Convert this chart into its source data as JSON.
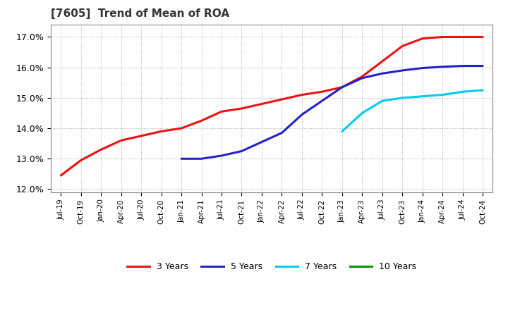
{
  "title": "[7605]  Trend of Mean of ROA",
  "title_fontsize": 11,
  "background_color": "#ffffff",
  "grid_color": "#aaaaaa",
  "ylim": [
    0.119,
    0.174
  ],
  "yticks": [
    0.12,
    0.13,
    0.14,
    0.15,
    0.16,
    0.17
  ],
  "ytick_labels": [
    "12.0%",
    "13.0%",
    "14.0%",
    "15.0%",
    "16.0%",
    "17.0%"
  ],
  "xtick_labels": [
    "Jul-19",
    "Oct-19",
    "Jan-20",
    "Apr-20",
    "Jul-20",
    "Oct-20",
    "Jan-21",
    "Apr-21",
    "Jul-21",
    "Oct-21",
    "Jan-22",
    "Apr-22",
    "Jul-22",
    "Oct-22",
    "Jan-23",
    "Apr-23",
    "Jul-23",
    "Oct-23",
    "Jan-24",
    "Apr-24",
    "Jul-24",
    "Oct-24"
  ],
  "legend_entries": [
    "3 Years",
    "5 Years",
    "7 Years",
    "10 Years"
  ],
  "legend_colors": [
    "#ee1111",
    "#2222cc",
    "#00ccee",
    "#009900"
  ],
  "series": {
    "3years": {
      "color": "#ee1111",
      "x_indices": [
        0,
        1,
        2,
        3,
        4,
        5,
        6,
        7,
        8,
        9,
        10,
        11,
        12,
        13,
        14,
        15,
        16,
        17,
        18,
        19,
        20,
        21
      ],
      "y": [
        0.1245,
        0.1295,
        0.133,
        0.136,
        0.1375,
        0.139,
        0.14,
        0.1425,
        0.1455,
        0.1465,
        0.148,
        0.1495,
        0.151,
        0.152,
        0.1535,
        0.157,
        0.162,
        0.167,
        0.1695,
        0.17,
        0.17,
        0.17
      ]
    },
    "5years": {
      "color": "#2222cc",
      "x_indices": [
        6,
        7,
        8,
        9,
        10,
        11,
        12,
        13,
        14,
        15,
        16,
        17,
        18,
        19,
        20,
        21
      ],
      "y": [
        0.13,
        0.13,
        0.131,
        0.1325,
        0.1355,
        0.1385,
        0.1445,
        0.149,
        0.1535,
        0.1565,
        0.158,
        0.159,
        0.1598,
        0.1602,
        0.1605,
        0.1605
      ]
    },
    "7years": {
      "color": "#00ccee",
      "x_indices": [
        14,
        15,
        16,
        17,
        18,
        19,
        20,
        21
      ],
      "y": [
        0.139,
        0.145,
        0.149,
        0.15,
        0.1505,
        0.151,
        0.152,
        0.1525
      ]
    },
    "10years": {
      "color": "#009900",
      "x_indices": [],
      "y": []
    }
  },
  "line_width": 2.2
}
